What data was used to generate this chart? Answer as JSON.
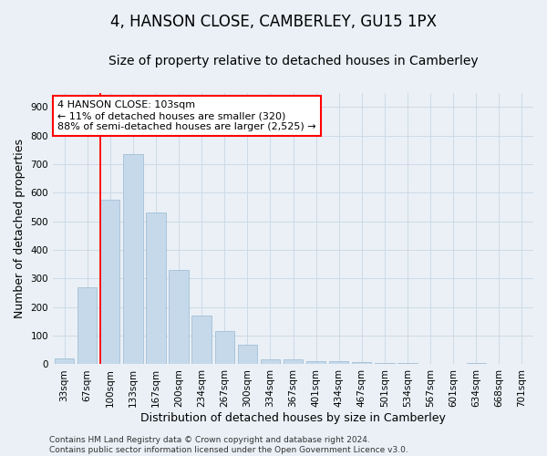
{
  "title": "4, HANSON CLOSE, CAMBERLEY, GU15 1PX",
  "subtitle": "Size of property relative to detached houses in Camberley",
  "xlabel": "Distribution of detached houses by size in Camberley",
  "ylabel": "Number of detached properties",
  "categories": [
    "33sqm",
    "67sqm",
    "100sqm",
    "133sqm",
    "167sqm",
    "200sqm",
    "234sqm",
    "267sqm",
    "300sqm",
    "334sqm",
    "367sqm",
    "401sqm",
    "434sqm",
    "467sqm",
    "501sqm",
    "534sqm",
    "567sqm",
    "601sqm",
    "634sqm",
    "668sqm",
    "701sqm"
  ],
  "values": [
    20,
    270,
    575,
    735,
    530,
    330,
    170,
    115,
    68,
    18,
    17,
    10,
    10,
    8,
    6,
    5,
    0,
    0,
    5,
    0,
    0
  ],
  "bar_color": "#c5d9ea",
  "bar_edge_color": "#9ab8d2",
  "grid_color": "#cddae6",
  "background_color": "#eaf0f6",
  "vline_color": "red",
  "vline_x_idx": 2,
  "annotation_text": "4 HANSON CLOSE: 103sqm\n← 11% of detached houses are smaller (320)\n88% of semi-detached houses are larger (2,525) →",
  "annotation_box_color": "white",
  "annotation_box_edge_color": "red",
  "ylim": [
    0,
    950
  ],
  "yticks": [
    0,
    100,
    200,
    300,
    400,
    500,
    600,
    700,
    800,
    900
  ],
  "footer_line1": "Contains HM Land Registry data © Crown copyright and database right 2024.",
  "footer_line2": "Contains public sector information licensed under the Open Government Licence v3.0.",
  "title_fontsize": 12,
  "subtitle_fontsize": 10,
  "axis_label_fontsize": 9,
  "tick_fontsize": 7.5,
  "annotation_fontsize": 8,
  "footer_fontsize": 6.5
}
